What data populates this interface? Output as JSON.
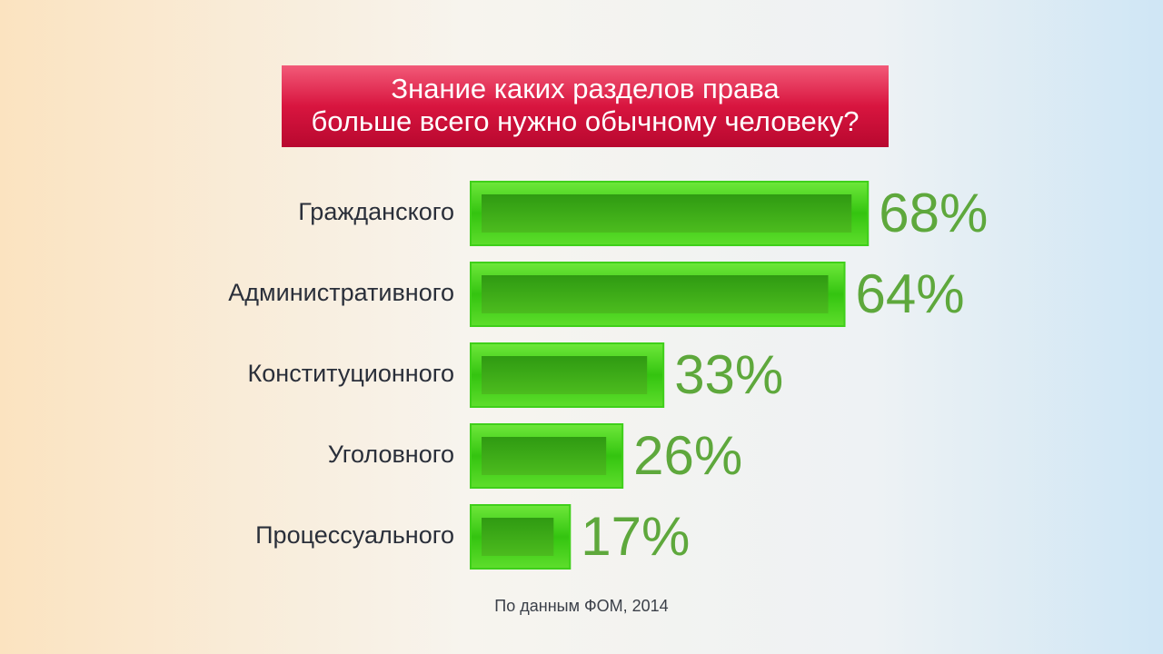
{
  "chart_data": {
    "type": "bar",
    "title": [
      "Знание каких разделов права",
      "больше всего нужно обычному человеку?"
    ],
    "categories": [
      "Гражданского",
      "Административного",
      "Конституционного",
      "Уголовного",
      "Процессуального"
    ],
    "values": [
      68,
      64,
      33,
      26,
      17
    ],
    "value_labels": [
      "68%",
      "64%",
      "33%",
      "26%",
      "17%"
    ],
    "color": "#3fcf1a",
    "source": "По данным ФОМ, 2014"
  }
}
